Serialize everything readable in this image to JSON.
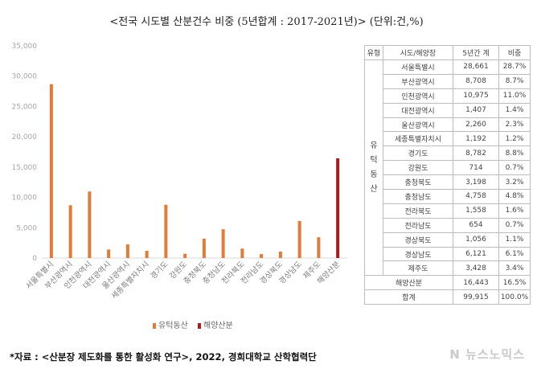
{
  "title": "<전국 시도별 산분건수 비중 (5년합계 : 2017-2021년)> (단위:건,%)",
  "chart_data": {
    "type": "bar",
    "categories": [
      "서울특별시",
      "부산광역시",
      "인천광역시",
      "대전광역시",
      "울산광역시",
      "세종특별자치시",
      "경기도",
      "강원도",
      "충청북도",
      "충청남도",
      "전라북도",
      "전라남도",
      "경상북도",
      "경상남도",
      "제주도",
      "해양산분"
    ],
    "values": [
      28661,
      8708,
      10975,
      1407,
      2260,
      1192,
      8782,
      714,
      3198,
      4758,
      1558,
      654,
      1056,
      6121,
      3428,
      16443
    ],
    "series_of_point": [
      "유턱동산",
      "유턱동산",
      "유턱동산",
      "유턱동산",
      "유턱동산",
      "유턱동산",
      "유턱동산",
      "유턱동산",
      "유턱동산",
      "유턱동산",
      "유턱동산",
      "유턱동산",
      "유턱동산",
      "유턱동산",
      "유턱동산",
      "해양산분"
    ],
    "legend": [
      {
        "name": "유턱동산",
        "color": "#e07b39"
      },
      {
        "name": "해양산분",
        "color": "#a31f1f"
      }
    ],
    "ylim": [
      0,
      35000
    ],
    "yticks": [
      "0",
      "5,000",
      "10,000",
      "15,000",
      "20,000",
      "25,000",
      "30,000",
      "35,000"
    ],
    "ytick_values": [
      0,
      5000,
      10000,
      15000,
      20000,
      25000,
      30000,
      35000
    ],
    "legend_position": "bottom",
    "grid": false
  },
  "table": {
    "headers": [
      "유형",
      "시도/해양장",
      "5년간 계",
      "비중"
    ],
    "group_label": "유\n턱\n동\n산",
    "rows": [
      {
        "region": "서울특별시",
        "count": "28,661",
        "ratio": "28.7%"
      },
      {
        "region": "부산광역시",
        "count": "8,708",
        "ratio": "8.7%"
      },
      {
        "region": "인천광역시",
        "count": "10,975",
        "ratio": "11.0%"
      },
      {
        "region": "대전광역시",
        "count": "1,407",
        "ratio": "1.4%"
      },
      {
        "region": "울산광역시",
        "count": "2,260",
        "ratio": "2.3%"
      },
      {
        "region": "세종특별자치시",
        "count": "1,192",
        "ratio": "1.2%"
      },
      {
        "region": "경기도",
        "count": "8,782",
        "ratio": "8.8%"
      },
      {
        "region": "강원도",
        "count": "714",
        "ratio": "0.7%"
      },
      {
        "region": "충청북도",
        "count": "3,198",
        "ratio": "3.2%"
      },
      {
        "region": "충청남도",
        "count": "4,758",
        "ratio": "4.8%"
      },
      {
        "region": "전라북도",
        "count": "1,558",
        "ratio": "1.6%"
      },
      {
        "region": "전라남도",
        "count": "654",
        "ratio": "0.7%"
      },
      {
        "region": "경상북도",
        "count": "1,056",
        "ratio": "1.1%"
      },
      {
        "region": "경상남도",
        "count": "6,121",
        "ratio": "6.1%"
      },
      {
        "region": "제주도",
        "count": "3,428",
        "ratio": "3.4%"
      }
    ],
    "sea_row": {
      "label": "해양산분",
      "count": "16,443",
      "ratio": "16.5%"
    },
    "total_row": {
      "label": "합계",
      "count": "99,915",
      "ratio": "100.0%"
    }
  },
  "footer": "*자료 : <산분장 제도화를 통한 활성화 연구>, 2022, 경희대학교 산학협력단",
  "watermark": "N 뉴스노믹스"
}
